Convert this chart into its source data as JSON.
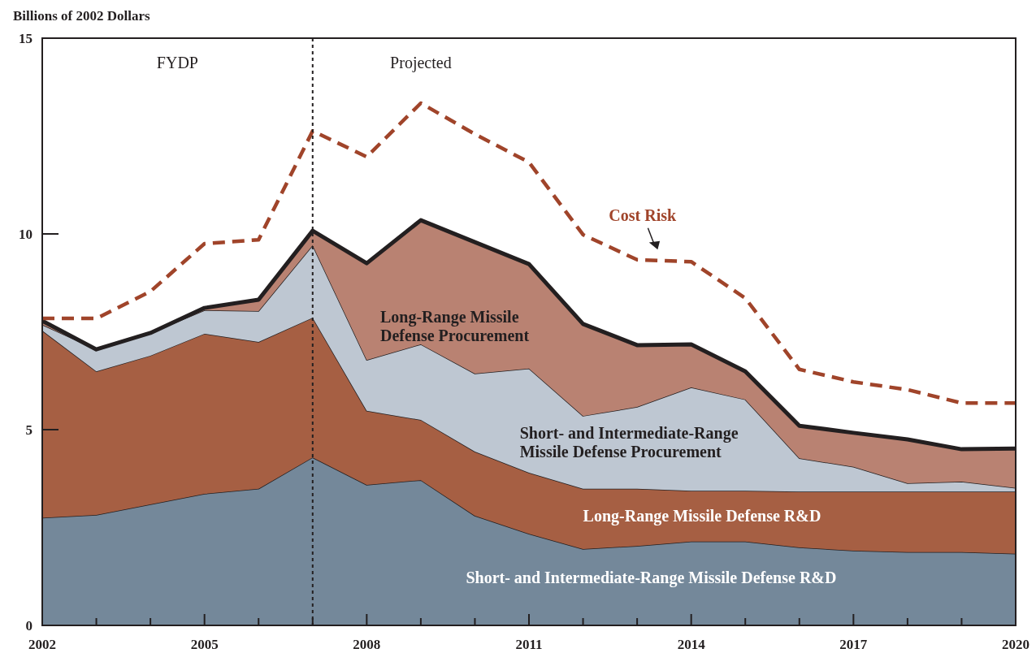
{
  "chart_data": {
    "type": "area",
    "stacked": true,
    "ylabel": "Billions of 2002 Dollars",
    "x": [
      2002,
      2003,
      2004,
      2005,
      2006,
      2007,
      2008,
      2009,
      2010,
      2011,
      2012,
      2013,
      2014,
      2015,
      2016,
      2017,
      2018,
      2019,
      2020
    ],
    "xlim": [
      2002,
      2020
    ],
    "xticks": [
      2002,
      {
        "value": 2003,
        "label": null
      },
      {
        "value": 2004,
        "label": null
      },
      2005,
      {
        "value": 2006,
        "label": null
      },
      {
        "value": 2007,
        "label": null
      },
      2008,
      {
        "value": 2009,
        "label": null
      },
      {
        "value": 2010,
        "label": null
      },
      2011,
      {
        "value": 2012,
        "label": null
      },
      {
        "value": 2013,
        "label": null
      },
      2014,
      {
        "value": 2015,
        "label": null
      },
      {
        "value": 2016,
        "label": null
      },
      2017,
      {
        "value": 2018,
        "label": null
      },
      {
        "value": 2019,
        "label": null
      },
      2020
    ],
    "ylim": [
      0,
      15
    ],
    "yticks": [
      0,
      5,
      10,
      15
    ],
    "grid": false,
    "series": [
      {
        "name": "Short- and Intermediate-Range Missile Defense R&D",
        "color": "#74889a",
        "values": [
          2.75,
          2.82,
          3.09,
          3.36,
          3.49,
          4.29,
          3.59,
          3.71,
          2.8,
          2.34,
          1.95,
          2.03,
          2.14,
          2.14,
          1.99,
          1.91,
          1.87,
          1.87,
          1.83
        ]
      },
      {
        "name": "Long-Range Missile Defense R&D",
        "color": "#a65f43",
        "values": [
          4.78,
          3.67,
          3.8,
          4.09,
          3.75,
          3.57,
          1.89,
          1.54,
          1.64,
          1.56,
          1.54,
          1.46,
          1.3,
          1.3,
          1.43,
          1.51,
          1.55,
          1.55,
          1.59
        ]
      },
      {
        "name": "Short- and Intermediate-Range Missile Defense Procurement",
        "color": "#bec7d2",
        "values": [
          0.15,
          0.56,
          0.58,
          0.6,
          0.79,
          1.85,
          1.3,
          1.93,
          1.99,
          2.66,
          1.86,
          2.09,
          2.64,
          2.33,
          0.85,
          0.63,
          0.21,
          0.25,
          0.09
        ]
      },
      {
        "name": "Long-Range Missile Defense Procurement",
        "color": "#b98272",
        "values": [
          0.1,
          0,
          0,
          0.06,
          0.29,
          0.37,
          2.47,
          3.17,
          3.36,
          2.67,
          2.35,
          1.58,
          1.1,
          0.72,
          0.83,
          0.87,
          1.12,
          0.83,
          1.01
        ]
      },
      {
        "name": "Cost Risk",
        "type": "line",
        "line_style": "dashed",
        "color": "#a0442a",
        "values": [
          7.84,
          7.84,
          8.53,
          9.75,
          9.85,
          12.63,
          11.97,
          13.34,
          12.55,
          11.83,
          9.98,
          9.34,
          9.29,
          8.36,
          6.54,
          6.22,
          6.02,
          5.68,
          5.68
        ]
      }
    ],
    "ref_lines": [
      {
        "axis": "x",
        "value": 2007,
        "color": "#231f20",
        "line_style": "dotted"
      }
    ],
    "annotations": [
      "FYDP",
      "Projected"
    ]
  }
}
